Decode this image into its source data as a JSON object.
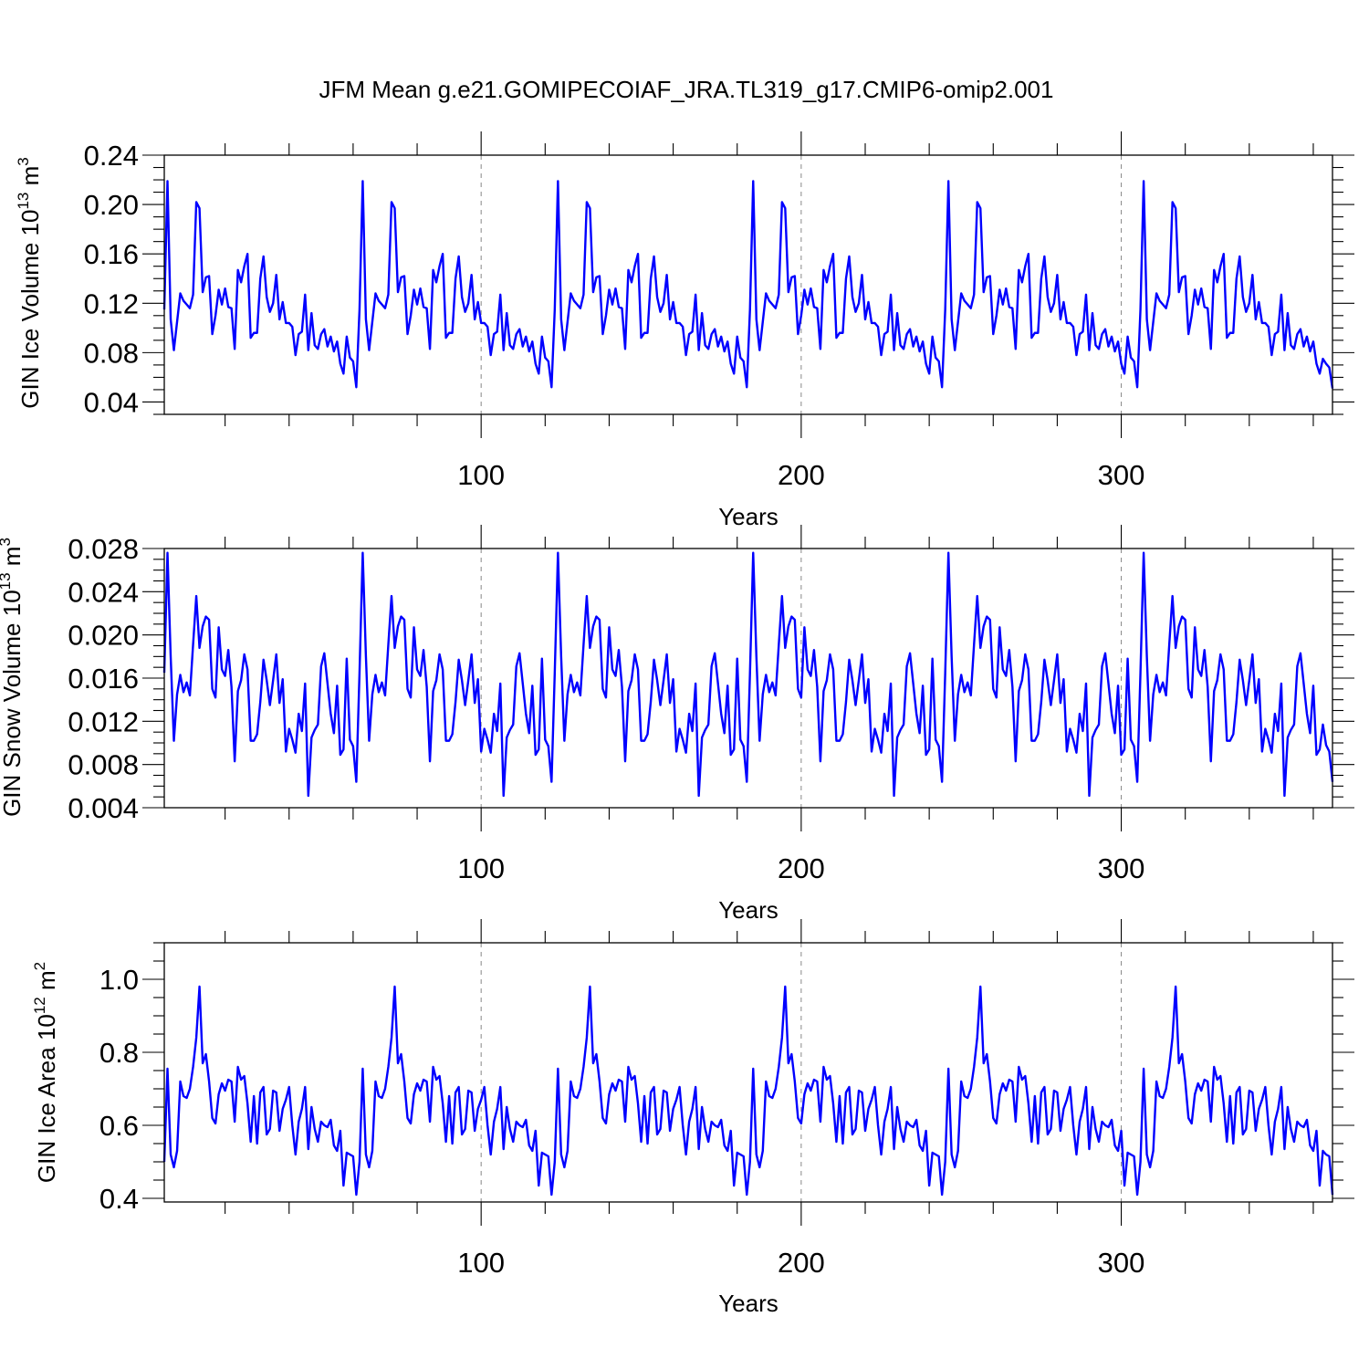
{
  "title": "JFM Mean g.e21.GOMIPECOIAF_JRA.TL319_g17.CMIP6-omip2.001",
  "colors": {
    "line": "#0000ff",
    "axis": "#000000",
    "grid": "#888888"
  },
  "chart_data": [
    {
      "type": "line",
      "id": "ice-volume",
      "ylabel": {
        "base": "GIN Ice Volume 10",
        "sup1": "13",
        "mid": " m",
        "sup2": "3"
      },
      "xlabel": "Years",
      "xlim": [
        1,
        366
      ],
      "ylim": [
        0.03,
        0.24
      ],
      "yticks": [
        0.04,
        0.08,
        0.12,
        0.16,
        0.2,
        0.24
      ],
      "ytick_labels": [
        "0.04",
        "0.08",
        "0.12",
        "0.16",
        "0.20",
        "0.24"
      ],
      "yminor": 0.01,
      "xticks": [
        100,
        200,
        300
      ],
      "xtick_labels": [
        "100",
        "200",
        "300"
      ],
      "xminor": 20,
      "grid_x": [
        100,
        200,
        300
      ],
      "cycle_length": 61,
      "cycle_start": 1,
      "cycle_values": [
        0.115,
        0.219,
        0.107,
        0.082,
        0.105,
        0.128,
        0.122,
        0.119,
        0.116,
        0.127,
        0.202,
        0.197,
        0.129,
        0.141,
        0.142,
        0.095,
        0.11,
        0.131,
        0.119,
        0.132,
        0.117,
        0.116,
        0.083,
        0.147,
        0.137,
        0.15,
        0.16,
        0.092,
        0.096,
        0.096,
        0.14,
        0.158,
        0.125,
        0.113,
        0.12,
        0.143,
        0.107,
        0.121,
        0.104,
        0.104,
        0.101,
        0.078,
        0.095,
        0.097,
        0.127,
        0.082,
        0.112,
        0.086,
        0.083,
        0.095,
        0.099,
        0.085,
        0.093,
        0.081,
        0.089,
        0.071,
        0.063,
        0.093,
        0.076,
        0.073,
        0.052
      ],
      "tail_values": [
        0.075,
        0.071,
        0.068,
        0.051
      ]
    },
    {
      "type": "line",
      "id": "snow-volume",
      "ylabel": {
        "base": "GIN Snow Volume 10",
        "sup1": "13",
        "mid": " m",
        "sup2": "3"
      },
      "xlabel": "Years",
      "xlim": [
        1,
        366
      ],
      "ylim": [
        0.004,
        0.028
      ],
      "yticks": [
        0.004,
        0.008,
        0.012,
        0.016,
        0.02,
        0.024,
        0.028
      ],
      "ytick_labels": [
        "0.004",
        "0.008",
        "0.012",
        "0.016",
        "0.020",
        "0.024",
        "0.028"
      ],
      "yminor": 0.001,
      "xticks": [
        100,
        200,
        300
      ],
      "xtick_labels": [
        "100",
        "200",
        "300"
      ],
      "xminor": 20,
      "grid_x": [
        100,
        200,
        300
      ],
      "cycle_length": 61,
      "cycle_start": 1,
      "cycle_values": [
        0.0165,
        0.0276,
        0.018,
        0.0102,
        0.0145,
        0.0163,
        0.0147,
        0.0156,
        0.0144,
        0.0191,
        0.0236,
        0.0188,
        0.0208,
        0.0217,
        0.0214,
        0.015,
        0.0142,
        0.0207,
        0.0168,
        0.0162,
        0.0186,
        0.0152,
        0.0083,
        0.0148,
        0.0158,
        0.0182,
        0.0168,
        0.0102,
        0.0102,
        0.0108,
        0.0138,
        0.0177,
        0.0158,
        0.0135,
        0.0158,
        0.0182,
        0.0137,
        0.0159,
        0.0092,
        0.0113,
        0.0103,
        0.0091,
        0.0127,
        0.0111,
        0.0155,
        0.0051,
        0.0105,
        0.0112,
        0.0117,
        0.0171,
        0.0183,
        0.0155,
        0.0127,
        0.0109,
        0.0153,
        0.0089,
        0.0094,
        0.0178,
        0.0103,
        0.0097,
        0.0064
      ],
      "tail_values": [
        0.0117,
        0.0098,
        0.0092,
        0.0064
      ]
    },
    {
      "type": "line",
      "id": "ice-area",
      "ylabel": {
        "base": "GIN Ice Area 10",
        "sup1": "12",
        "mid": " m",
        "sup2": "2"
      },
      "xlabel": "Years",
      "xlim": [
        1,
        366
      ],
      "ylim": [
        0.39,
        1.1
      ],
      "yticks": [
        0.4,
        0.6,
        0.8,
        1.0
      ],
      "ytick_labels": [
        "0.4",
        "0.6",
        "0.8",
        "1.0"
      ],
      "yminor": 0.05,
      "xticks": [
        100,
        200,
        300
      ],
      "xtick_labels": [
        "100",
        "200",
        "300"
      ],
      "xminor": 20,
      "grid_x": [
        100,
        200,
        300
      ],
      "cycle_length": 61,
      "cycle_start": 1,
      "cycle_values": [
        0.5,
        0.755,
        0.52,
        0.485,
        0.53,
        0.72,
        0.68,
        0.675,
        0.7,
        0.76,
        0.84,
        0.98,
        0.77,
        0.795,
        0.72,
        0.62,
        0.605,
        0.685,
        0.715,
        0.695,
        0.725,
        0.72,
        0.61,
        0.76,
        0.725,
        0.735,
        0.66,
        0.555,
        0.68,
        0.55,
        0.69,
        0.705,
        0.575,
        0.59,
        0.695,
        0.69,
        0.585,
        0.645,
        0.67,
        0.705,
        0.6,
        0.52,
        0.61,
        0.645,
        0.705,
        0.535,
        0.65,
        0.59,
        0.555,
        0.61,
        0.6,
        0.595,
        0.615,
        0.545,
        0.53,
        0.585,
        0.435,
        0.525,
        0.52,
        0.515,
        0.41
      ],
      "tail_values": [
        0.53,
        0.52,
        0.515,
        0.41
      ]
    }
  ]
}
